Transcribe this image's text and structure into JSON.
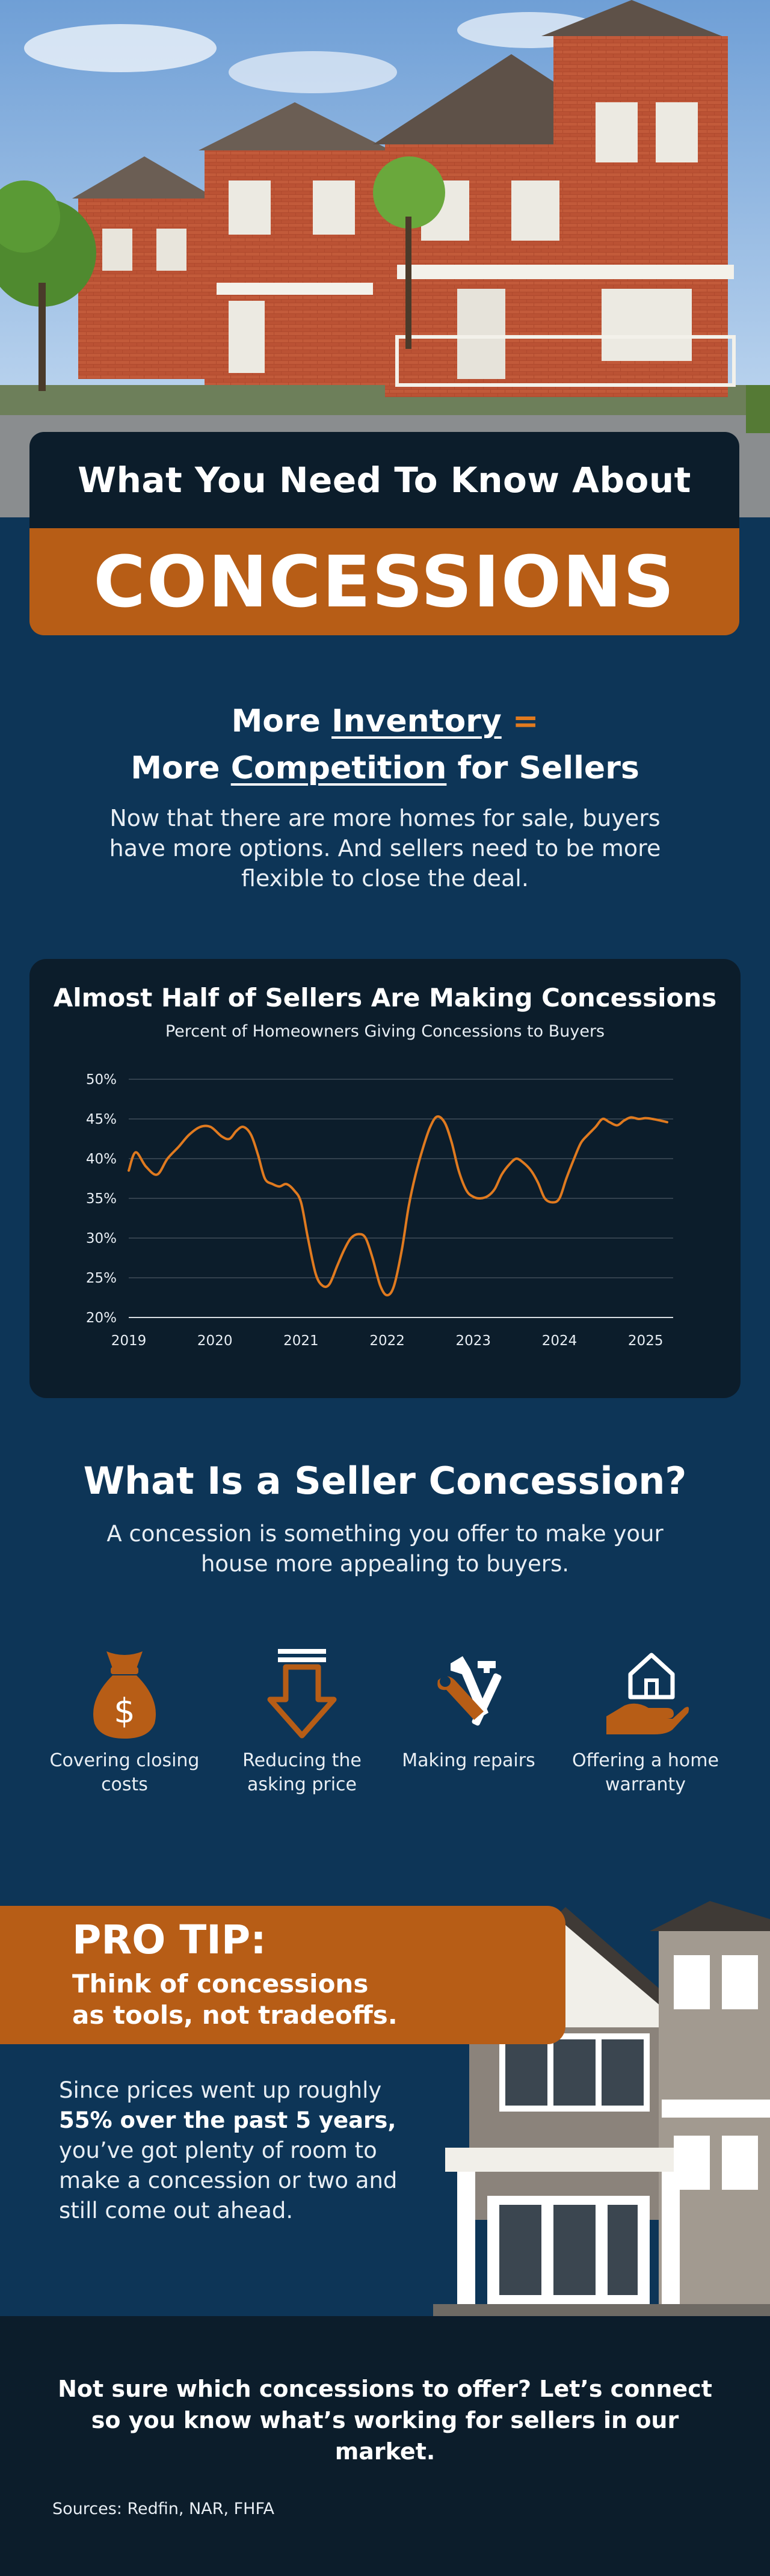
{
  "title": {
    "line1": "What You Need To Know About",
    "line2": "CONCESSIONS"
  },
  "inventory": {
    "heading_more1": "More ",
    "heading_inventory": "Inventory",
    "heading_eq": " =",
    "heading_more2": "More ",
    "heading_competition": "Competition",
    "heading_tail": " for Sellers",
    "body": "Now that there are more homes for sale, buyers have more options. And sellers need to be more flexible to close the deal."
  },
  "chart": {
    "title": "Almost Half of Sellers Are Making Concessions",
    "subtitle": "Percent of Homeowners Giving Concessions to Buyers"
  },
  "chart_data": {
    "type": "line",
    "title": "Almost Half of Sellers Are Making Concessions",
    "subtitle": "Percent of Homeowners Giving Concessions to Buyers",
    "ylim": [
      20,
      50
    ],
    "xlim": [
      2019.0,
      2025.25
    ],
    "y_ticks": [
      "50%",
      "45%",
      "40%",
      "35%",
      "30%",
      "25%",
      "20%"
    ],
    "y_tick_values": [
      50,
      45,
      40,
      35,
      30,
      25,
      20
    ],
    "x_ticks": [
      "2019",
      "2020",
      "2021",
      "2022",
      "2023",
      "2024",
      "2025"
    ],
    "x_tick_values": [
      2019,
      2020,
      2021,
      2022,
      2023,
      2024,
      2025
    ],
    "grid": true,
    "color": "#e07a1f",
    "series": [
      {
        "x": [
          2019.0,
          2019.08,
          2019.2,
          2019.33,
          2019.45,
          2019.58,
          2019.7,
          2019.83,
          2019.95,
          2020.08,
          2020.17,
          2020.25,
          2020.33,
          2020.42,
          2020.5,
          2020.58,
          2020.67,
          2020.75,
          2020.83,
          2020.92,
          2021.0,
          2021.08,
          2021.17,
          2021.25,
          2021.33,
          2021.42,
          2021.5,
          2021.58,
          2021.67,
          2021.75,
          2021.83,
          2021.92,
          2022.0,
          2022.08,
          2022.17,
          2022.25,
          2022.33,
          2022.42,
          2022.5,
          2022.58,
          2022.67,
          2022.75,
          2022.83,
          2022.92,
          2023.0,
          2023.08,
          2023.17,
          2023.25,
          2023.33,
          2023.42,
          2023.5,
          2023.58,
          2023.67,
          2023.75,
          2023.83,
          2023.92,
          2024.0,
          2024.08,
          2024.17,
          2024.25,
          2024.33,
          2024.42,
          2024.5,
          2024.58,
          2024.67,
          2024.75,
          2024.83,
          2024.92,
          2025.0,
          2025.08,
          2025.17,
          2025.25
        ],
        "y": [
          38.5,
          40.8,
          39.0,
          38.0,
          40.0,
          41.5,
          43.0,
          44.0,
          44.0,
          42.8,
          42.5,
          43.5,
          44.0,
          43.0,
          40.5,
          37.5,
          36.8,
          36.5,
          36.8,
          36.0,
          34.5,
          30.0,
          25.5,
          24.0,
          24.2,
          26.5,
          28.5,
          30.0,
          30.5,
          30.0,
          27.5,
          24.0,
          22.8,
          24.0,
          28.5,
          34.0,
          38.0,
          41.5,
          44.0,
          45.3,
          44.5,
          42.0,
          38.5,
          36.0,
          35.2,
          35.0,
          35.3,
          36.2,
          38.0,
          39.3,
          40.0,
          39.5,
          38.5,
          37.0,
          35.0,
          34.5,
          35.0,
          37.5,
          40.0,
          42.0,
          43.0,
          44.0,
          45.0,
          44.6,
          44.2,
          44.8,
          45.2,
          45.0,
          45.1,
          45.0,
          44.8,
          44.6
        ]
      }
    ]
  },
  "seller_concession": {
    "heading": "What Is a Seller Concession?",
    "body": "A concession is something you offer to make your house more appealing to buyers.",
    "items": [
      {
        "icon": "money-bag-icon",
        "label": "Covering closing costs"
      },
      {
        "icon": "down-arrow-icon",
        "label": "Reducing the asking price"
      },
      {
        "icon": "tools-icon",
        "label": "Making repairs"
      },
      {
        "icon": "house-hand-icon",
        "label": "Offering a home warranty"
      }
    ]
  },
  "pro_tip": {
    "title": "PRO TIP:",
    "subtitle": "Think of concessions as tools, not tradeoffs.",
    "body_pre": "Since prices went up roughly ",
    "body_bold": "55% over the past 5 years,",
    "body_post": " you’ve got plenty of room to make a concession or two and still come out ahead."
  },
  "footer": {
    "cta": "Not sure which concessions to offer? Let’s connect so you know what’s working for sellers in our market.",
    "sources": "Sources: Redfin, NAR, FHFA"
  },
  "colors": {
    "navy": "#0d3557",
    "dark": "#0c1d2b",
    "orange": "#b75d16",
    "line": "#e07a1f"
  }
}
